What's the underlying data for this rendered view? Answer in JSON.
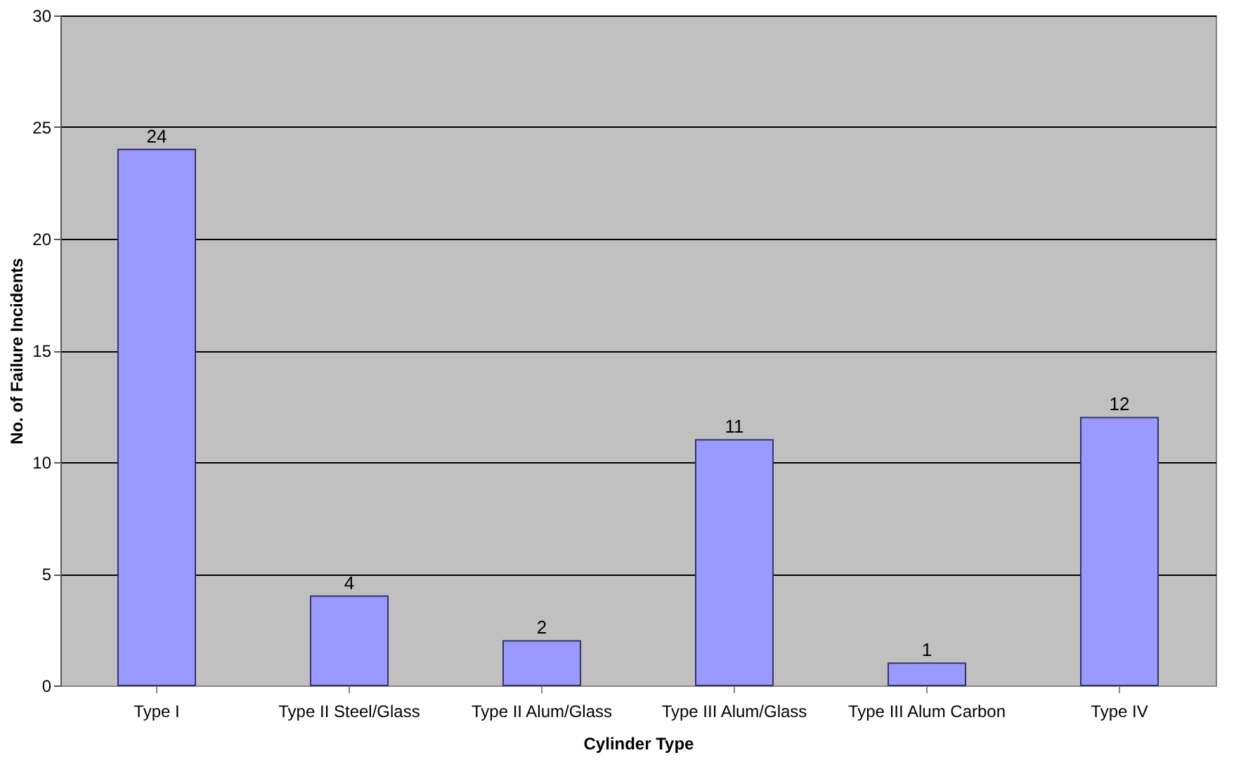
{
  "chart_data": {
    "type": "bar",
    "xlabel": "Cylinder Type",
    "ylabel": "No. of Failure Incidents",
    "categories": [
      "Type I",
      "Type II Steel/Glass",
      "Type II Alum/Glass",
      "Type III Alum/Glass",
      "Type III Alum Carbon",
      "Type IV"
    ],
    "values": [
      24,
      4,
      2,
      11,
      1,
      12
    ],
    "color": "#9999ff",
    "ylim": [
      0,
      30
    ],
    "yticks": [
      0,
      5,
      10,
      15,
      20,
      25,
      30
    ],
    "grid": "y",
    "data_labels": true
  }
}
